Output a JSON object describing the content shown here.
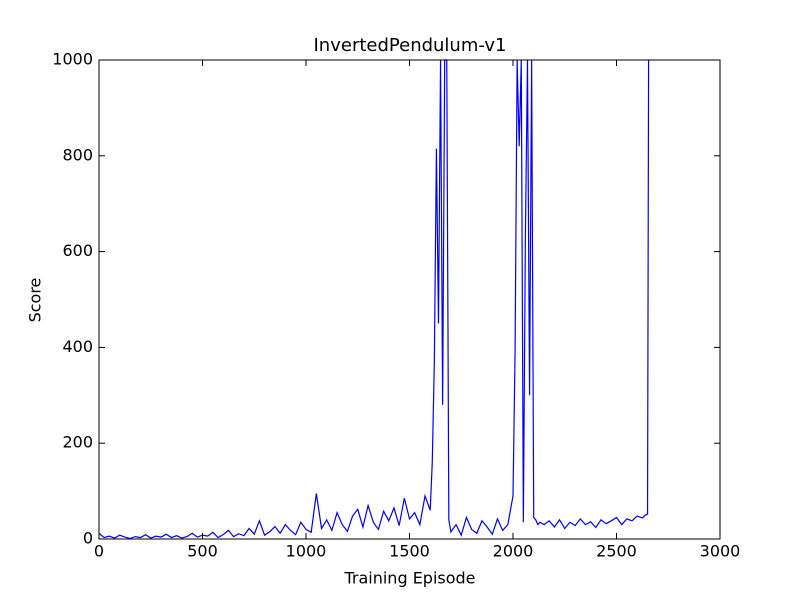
{
  "chart_data": {
    "type": "line",
    "title": "InvertedPendulum-v1",
    "x_label": "Training Episode",
    "y_label": "Score",
    "x": [
      0,
      25,
      50,
      75,
      100,
      125,
      150,
      175,
      200,
      225,
      250,
      275,
      300,
      325,
      350,
      375,
      400,
      425,
      450,
      475,
      500,
      525,
      550,
      575,
      600,
      625,
      650,
      675,
      700,
      725,
      750,
      775,
      800,
      825,
      850,
      875,
      900,
      925,
      950,
      975,
      1000,
      1025,
      1050,
      1075,
      1100,
      1125,
      1150,
      1175,
      1200,
      1225,
      1250,
      1275,
      1300,
      1325,
      1350,
      1375,
      1400,
      1425,
      1450,
      1475,
      1500,
      1525,
      1550,
      1575,
      1600,
      1610,
      1620,
      1630,
      1640,
      1650,
      1660,
      1670,
      1680,
      1690,
      1700,
      1725,
      1750,
      1775,
      1800,
      1825,
      1850,
      1875,
      1900,
      1925,
      1950,
      1975,
      2000,
      2010,
      2020,
      2030,
      2040,
      2050,
      2060,
      2070,
      2080,
      2090,
      2100,
      2110,
      2120,
      2130,
      2150,
      2175,
      2200,
      2225,
      2250,
      2275,
      2300,
      2325,
      2350,
      2375,
      2400,
      2425,
      2450,
      2475,
      2500,
      2525,
      2550,
      2575,
      2600,
      2625,
      2640,
      2650,
      2655
    ],
    "series": [
      {
        "name": "Score",
        "color": "#0000ff",
        "values": [
          12,
          3,
          6,
          2,
          8,
          4,
          1,
          5,
          3,
          9,
          2,
          6,
          4,
          10,
          3,
          7,
          2,
          5,
          12,
          4,
          8,
          6,
          14,
          3,
          9,
          18,
          5,
          11,
          7,
          22,
          10,
          38,
          8,
          15,
          26,
          12,
          30,
          18,
          9,
          35,
          20,
          14,
          95,
          22,
          40,
          18,
          55,
          30,
          16,
          48,
          62,
          25,
          70,
          35,
          20,
          58,
          38,
          65,
          28,
          85,
          42,
          55,
          30,
          90,
          60,
          160,
          370,
          815,
          450,
          1000,
          280,
          1000,
          1000,
          40,
          15,
          30,
          8,
          45,
          20,
          12,
          38,
          25,
          10,
          42,
          18,
          30,
          90,
          390,
          1000,
          820,
          1000,
          35,
          640,
          1000,
          300,
          1000,
          45,
          40,
          30,
          35,
          30,
          38,
          25,
          40,
          22,
          35,
          28,
          42,
          30,
          36,
          24,
          40,
          32,
          38,
          45,
          30,
          42,
          38,
          48,
          44,
          50,
          52,
          1000
        ]
      }
    ],
    "xlim": [
      0,
      3000
    ],
    "ylim": [
      0,
      1000
    ],
    "xticks": [
      0,
      500,
      1000,
      1500,
      2000,
      2500,
      3000
    ],
    "yticks": [
      0,
      200,
      400,
      600,
      800,
      1000
    ],
    "grid": false
  }
}
